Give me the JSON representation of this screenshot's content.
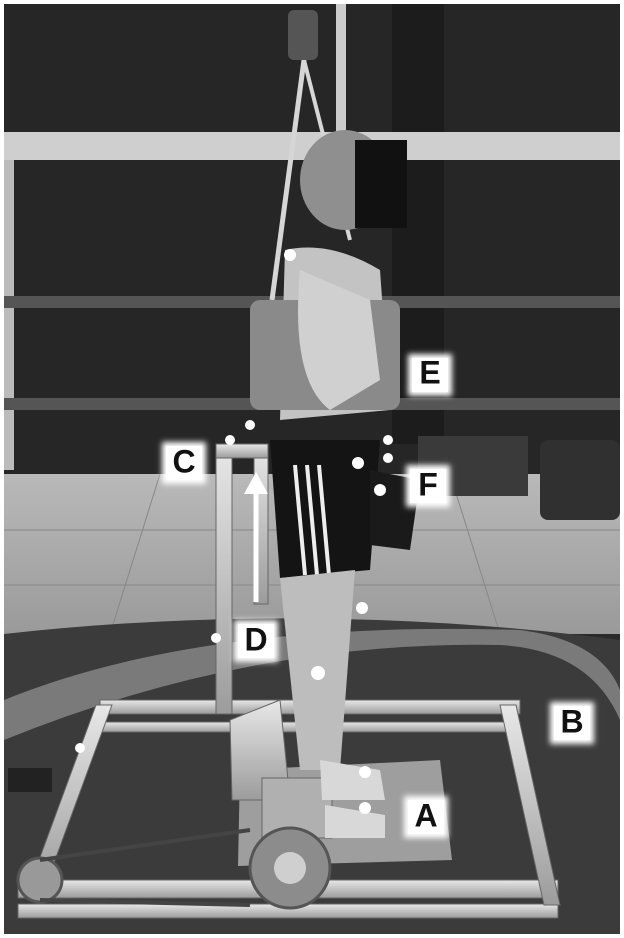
{
  "labels": [
    "A",
    "B",
    "C",
    "D",
    "E",
    "F"
  ]
}
